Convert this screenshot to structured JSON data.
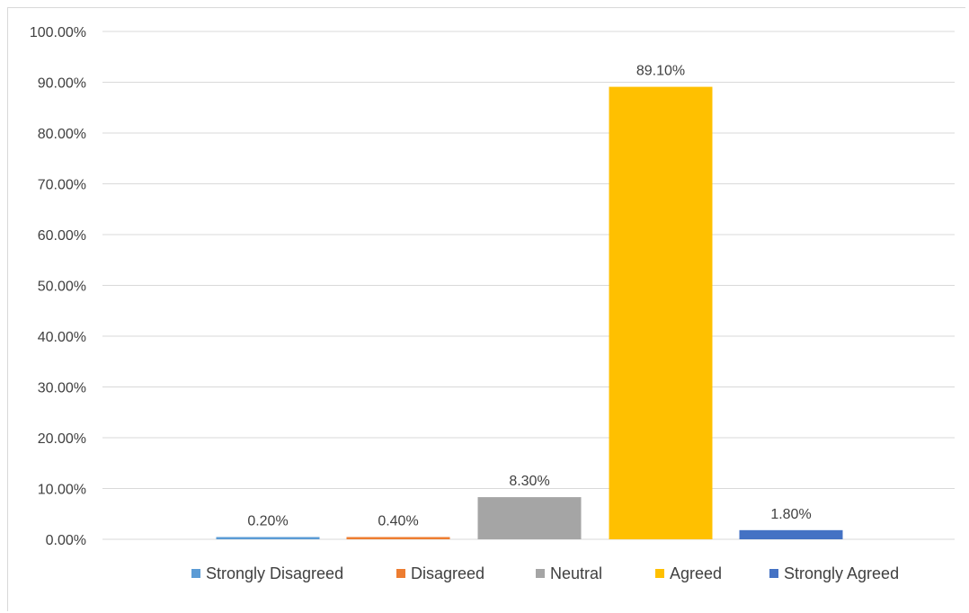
{
  "chart_data": {
    "type": "bar",
    "title": "",
    "xlabel": "",
    "ylabel": "",
    "ylim": [
      0,
      100
    ],
    "y_ticks": [
      "0.00%",
      "10.00%",
      "20.00%",
      "30.00%",
      "40.00%",
      "50.00%",
      "60.00%",
      "70.00%",
      "80.00%",
      "90.00%",
      "100.00%"
    ],
    "grid": true,
    "legend_position": "bottom",
    "categories": [
      "Strongly Disagreed",
      "Disagreed",
      "Neutral",
      "Agreed",
      "Strongly Agreed"
    ],
    "values": [
      0.2,
      0.4,
      8.3,
      89.1,
      1.8
    ],
    "data_labels": [
      "0.20%",
      "0.40%",
      "8.30%",
      "89.10%",
      "1.80%"
    ],
    "colors": [
      "#5b9bd5",
      "#ed7d31",
      "#a5a5a5",
      "#ffc000",
      "#4472c4"
    ]
  }
}
